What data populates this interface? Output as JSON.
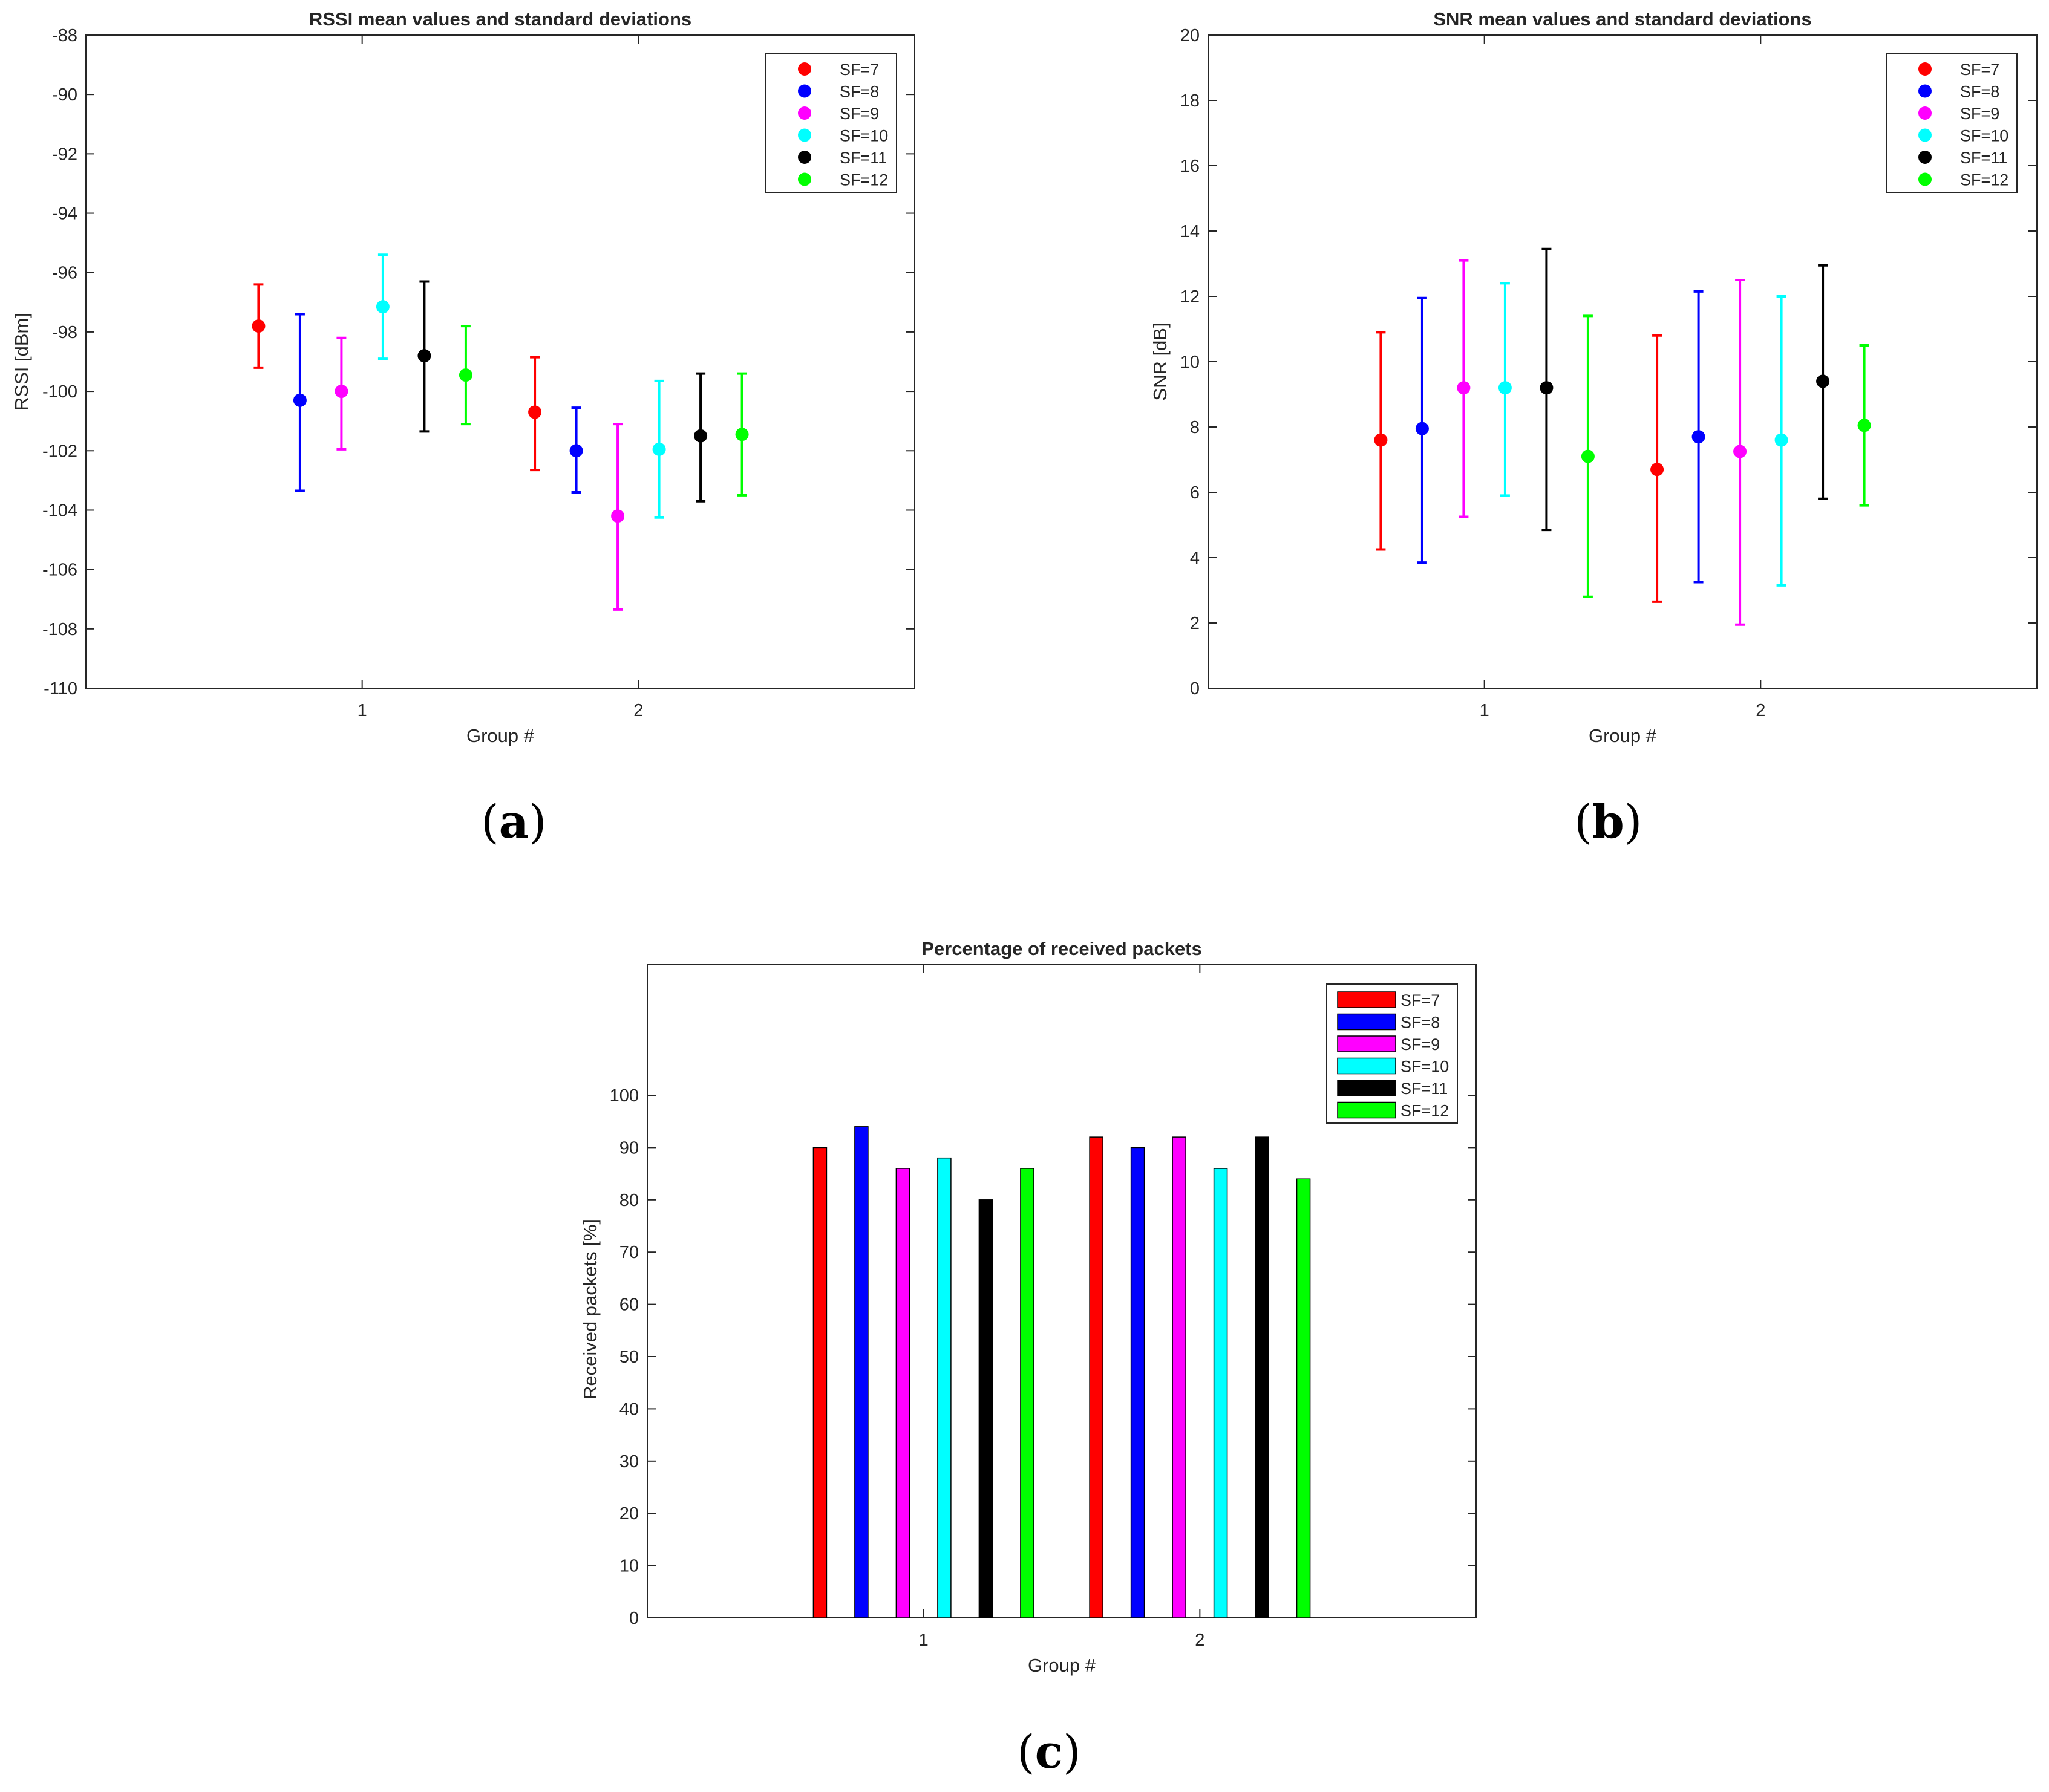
{
  "panels": {
    "a": {
      "caption_open": "(",
      "caption_letter": "a",
      "caption_close": ")"
    },
    "b": {
      "caption_open": "(",
      "caption_letter": "b",
      "caption_close": ")"
    },
    "c": {
      "caption_open": "(",
      "caption_letter": "c",
      "caption_close": ")"
    }
  },
  "chart_data": [
    {
      "id": "a",
      "type": "errorbar",
      "title": "RSSI mean values and standard deviations",
      "xlabel": "Group #",
      "ylabel": "RSSI [dBm]",
      "ylim": [
        -110,
        -88
      ],
      "yticks": [
        -110,
        -108,
        -106,
        -104,
        -102,
        -100,
        -98,
        -96,
        -94,
        -92,
        -90,
        -88
      ],
      "categories": [
        "1",
        "2"
      ],
      "legend_position": "top-right",
      "series": [
        {
          "name": "SF=7",
          "color": "#ff0000",
          "mean": [
            -97.8,
            -100.7
          ],
          "low": [
            -99.2,
            -102.65
          ],
          "high": [
            -96.4,
            -98.85
          ]
        },
        {
          "name": "SF=8",
          "color": "#0000ff",
          "mean": [
            -100.3,
            -102.0
          ],
          "low": [
            -103.35,
            -103.4
          ],
          "high": [
            -97.4,
            -100.55
          ]
        },
        {
          "name": "SF=9",
          "color": "#ff00ff",
          "mean": [
            -100.0,
            -104.2
          ],
          "low": [
            -101.95,
            -107.35
          ],
          "high": [
            -98.2,
            -101.1
          ]
        },
        {
          "name": "SF=10",
          "color": "#00ffff",
          "mean": [
            -97.15,
            -101.95
          ],
          "low": [
            -98.9,
            -104.25
          ],
          "high": [
            -95.4,
            -99.65
          ]
        },
        {
          "name": "SF=11",
          "color": "#000000",
          "mean": [
            -98.8,
            -101.5
          ],
          "low": [
            -101.35,
            -103.7
          ],
          "high": [
            -96.3,
            -99.4
          ]
        },
        {
          "name": "SF=12",
          "color": "#00ff00",
          "mean": [
            -99.45,
            -101.45
          ],
          "low": [
            -101.1,
            -103.5
          ],
          "high": [
            -97.8,
            -99.4
          ]
        }
      ]
    },
    {
      "id": "b",
      "type": "errorbar",
      "title": "SNR mean values and standard deviations",
      "xlabel": "Group #",
      "ylabel": "SNR [dB]",
      "ylim": [
        0,
        20
      ],
      "yticks": [
        0,
        2,
        4,
        6,
        8,
        10,
        12,
        14,
        16,
        18,
        20
      ],
      "categories": [
        "1",
        "2"
      ],
      "legend_position": "top-right",
      "series": [
        {
          "name": "SF=7",
          "color": "#ff0000",
          "mean": [
            7.6,
            6.7
          ],
          "low": [
            4.25,
            2.65
          ],
          "high": [
            10.9,
            10.8
          ]
        },
        {
          "name": "SF=8",
          "color": "#0000ff",
          "mean": [
            7.95,
            7.7
          ],
          "low": [
            3.85,
            3.25
          ],
          "high": [
            11.95,
            12.15
          ]
        },
        {
          "name": "SF=9",
          "color": "#ff00ff",
          "mean": [
            9.2,
            7.25
          ],
          "low": [
            5.25,
            1.95
          ],
          "high": [
            13.1,
            12.5
          ]
        },
        {
          "name": "SF=10",
          "color": "#00ffff",
          "mean": [
            9.2,
            7.6
          ],
          "low": [
            5.9,
            3.15
          ],
          "high": [
            12.4,
            12.0
          ]
        },
        {
          "name": "SF=11",
          "color": "#000000",
          "mean": [
            9.2,
            9.4
          ],
          "low": [
            4.85,
            5.8
          ],
          "high": [
            13.45,
            12.95
          ]
        },
        {
          "name": "SF=12",
          "color": "#00ff00",
          "mean": [
            7.1,
            8.05
          ],
          "low": [
            2.8,
            5.6
          ],
          "high": [
            11.4,
            10.5
          ]
        }
      ]
    },
    {
      "id": "c",
      "type": "bar",
      "title": "Percentage of received packets",
      "xlabel": "Group #",
      "ylabel": "Received packets [%]",
      "ylim": [
        0,
        125
      ],
      "yticks": [
        0,
        10,
        20,
        30,
        40,
        50,
        60,
        70,
        80,
        90,
        100
      ],
      "categories": [
        "1",
        "2"
      ],
      "legend_position": "top-right",
      "series": [
        {
          "name": "SF=7",
          "color": "#ff0000",
          "values": [
            90,
            92
          ]
        },
        {
          "name": "SF=8",
          "color": "#0000ff",
          "values": [
            94,
            90
          ]
        },
        {
          "name": "SF=9",
          "color": "#ff00ff",
          "values": [
            86,
            92
          ]
        },
        {
          "name": "SF=10",
          "color": "#00ffff",
          "values": [
            88,
            86
          ]
        },
        {
          "name": "SF=11",
          "color": "#000000",
          "values": [
            80,
            92
          ]
        },
        {
          "name": "SF=12",
          "color": "#00ff00",
          "values": [
            86,
            84
          ]
        }
      ]
    }
  ]
}
